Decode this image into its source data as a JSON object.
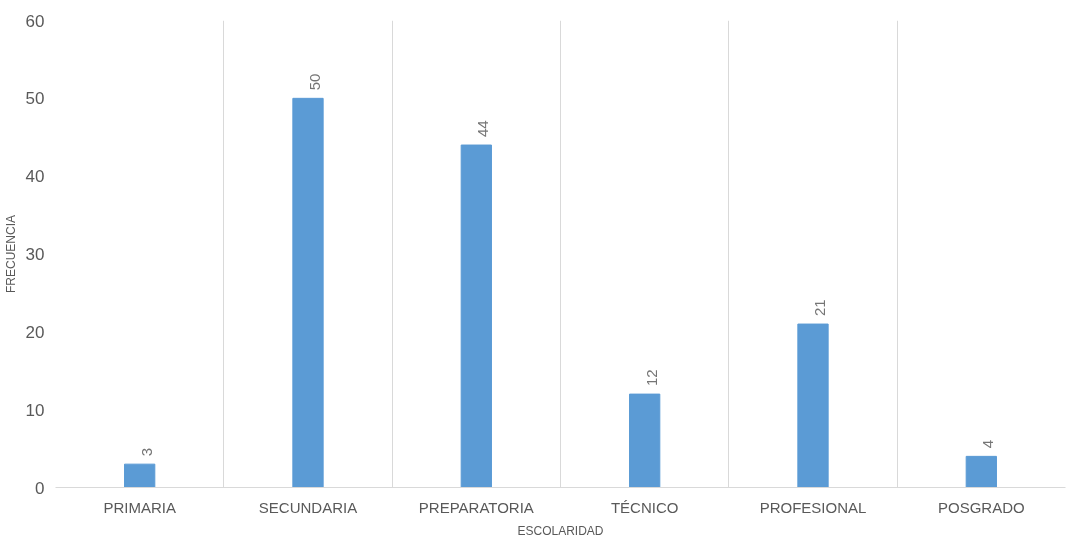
{
  "chart_data": {
    "type": "bar",
    "xlabel": "ESCOLARIDAD",
    "ylabel": "FRECUENCIA",
    "categories": [
      "PRIMARIA",
      "SECUNDARIA",
      "PREPARATORIA",
      "TÉCNICO",
      "PROFESIONAL",
      "POSGRADO"
    ],
    "values": [
      3,
      50,
      44,
      12,
      21,
      4
    ],
    "color": "#5b9bd5",
    "ylim": [
      0,
      60
    ],
    "yticks": [
      0,
      10,
      20,
      30,
      40,
      50,
      60
    ],
    "grid": "x",
    "data_labels": true
  }
}
